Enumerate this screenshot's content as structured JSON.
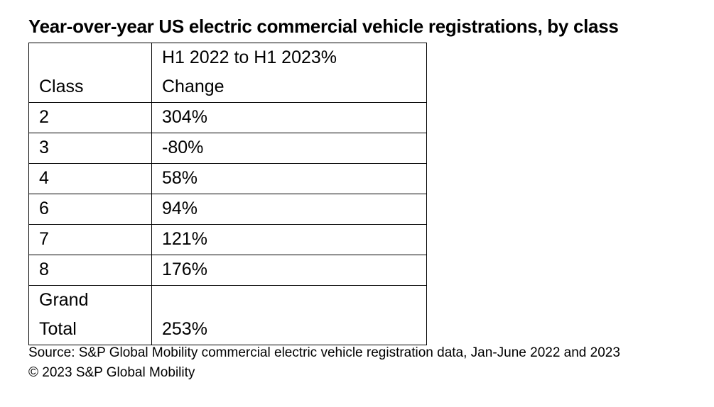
{
  "chart_data": {
    "type": "table",
    "title": "Year-over-year US electric commercial vehicle registrations, by class",
    "columns": [
      "Class",
      "H1 2022 to H1 2023% Change"
    ],
    "rows": [
      {
        "class": "2",
        "change": "304%"
      },
      {
        "class": "3",
        "change": "-80%"
      },
      {
        "class": "4",
        "change": "58%"
      },
      {
        "class": "6",
        "change": "94%"
      },
      {
        "class": "7",
        "change": "121%"
      },
      {
        "class": "8",
        "change": "176%"
      }
    ],
    "total": {
      "class": "Grand Total",
      "change": "253%"
    },
    "source": "Source: S&P Global Mobility commercial electric vehicle registration data, Jan-June 2022 and 2023",
    "copyright": "© 2023 S&P Global Mobility"
  }
}
